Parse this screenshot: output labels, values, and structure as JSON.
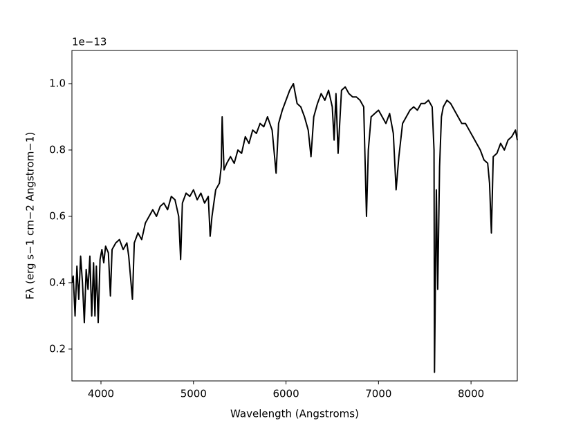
{
  "chart_data": {
    "type": "line",
    "xlabel": "Wavelength (Angstroms)",
    "ylabel": "Fλ (erg s−1 cm−2 Angstrom−1)",
    "y_offset_label": "1e−13",
    "color": "#000000",
    "xlim": [
      3686,
      8500
    ],
    "ylim": [
      0.104,
      1.1
    ],
    "xticks": [
      4000,
      5000,
      6000,
      7000,
      8000
    ],
    "yticks": [
      0.2,
      0.4,
      0.6,
      0.8,
      {
        "value": 1,
        "label": "1.0"
      }
    ],
    "x": [
      3690,
      3700,
      3720,
      3740,
      3760,
      3780,
      3800,
      3820,
      3840,
      3860,
      3880,
      3900,
      3920,
      3935,
      3950,
      3970,
      3990,
      4010,
      4030,
      4050,
      4080,
      4102,
      4120,
      4160,
      4200,
      4240,
      4280,
      4300,
      4340,
      4360,
      4400,
      4440,
      4480,
      4520,
      4560,
      4600,
      4640,
      4680,
      4720,
      4760,
      4800,
      4840,
      4861,
      4880,
      4920,
      4960,
      5000,
      5040,
      5080,
      5120,
      5160,
      5180,
      5200,
      5240,
      5280,
      5300,
      5310,
      5330,
      5360,
      5400,
      5440,
      5480,
      5520,
      5560,
      5600,
      5640,
      5680,
      5720,
      5760,
      5800,
      5850,
      5893,
      5920,
      5960,
      6000,
      6040,
      6080,
      6120,
      6160,
      6200,
      6240,
      6270,
      6300,
      6340,
      6380,
      6420,
      6460,
      6500,
      6520,
      6540,
      6563,
      6600,
      6640,
      6680,
      6720,
      6760,
      6800,
      6840,
      6870,
      6890,
      6920,
      6960,
      7000,
      7040,
      7080,
      7120,
      7160,
      7190,
      7220,
      7260,
      7300,
      7340,
      7380,
      7420,
      7460,
      7500,
      7540,
      7580,
      7600,
      7605,
      7625,
      7640,
      7660,
      7680,
      7700,
      7740,
      7780,
      7820,
      7860,
      7900,
      7940,
      7980,
      8020,
      8060,
      8100,
      8140,
      8180,
      8200,
      8220,
      8240,
      8280,
      8320,
      8360,
      8400,
      8440,
      8480,
      8500
    ],
    "values": [
      0.4,
      0.42,
      0.3,
      0.45,
      0.35,
      0.48,
      0.4,
      0.28,
      0.44,
      0.38,
      0.48,
      0.3,
      0.46,
      0.3,
      0.45,
      0.28,
      0.47,
      0.5,
      0.46,
      0.51,
      0.49,
      0.36,
      0.5,
      0.52,
      0.53,
      0.5,
      0.52,
      0.48,
      0.35,
      0.52,
      0.55,
      0.53,
      0.58,
      0.6,
      0.62,
      0.6,
      0.63,
      0.64,
      0.62,
      0.66,
      0.65,
      0.6,
      0.47,
      0.64,
      0.67,
      0.66,
      0.68,
      0.65,
      0.67,
      0.64,
      0.66,
      0.54,
      0.6,
      0.68,
      0.7,
      0.75,
      0.9,
      0.74,
      0.76,
      0.78,
      0.76,
      0.8,
      0.79,
      0.84,
      0.82,
      0.86,
      0.85,
      0.88,
      0.87,
      0.9,
      0.86,
      0.73,
      0.88,
      0.92,
      0.95,
      0.98,
      1.0,
      0.94,
      0.93,
      0.9,
      0.86,
      0.78,
      0.9,
      0.94,
      0.97,
      0.95,
      0.98,
      0.93,
      0.83,
      0.97,
      0.79,
      0.98,
      0.99,
      0.97,
      0.96,
      0.96,
      0.95,
      0.93,
      0.6,
      0.8,
      0.9,
      0.91,
      0.92,
      0.9,
      0.88,
      0.91,
      0.85,
      0.68,
      0.78,
      0.88,
      0.9,
      0.92,
      0.93,
      0.92,
      0.94,
      0.94,
      0.95,
      0.93,
      0.8,
      0.13,
      0.68,
      0.38,
      0.75,
      0.9,
      0.93,
      0.95,
      0.94,
      0.92,
      0.9,
      0.88,
      0.88,
      0.86,
      0.84,
      0.82,
      0.8,
      0.77,
      0.76,
      0.7,
      0.55,
      0.78,
      0.79,
      0.82,
      0.8,
      0.83,
      0.84,
      0.86,
      0.83
    ]
  }
}
